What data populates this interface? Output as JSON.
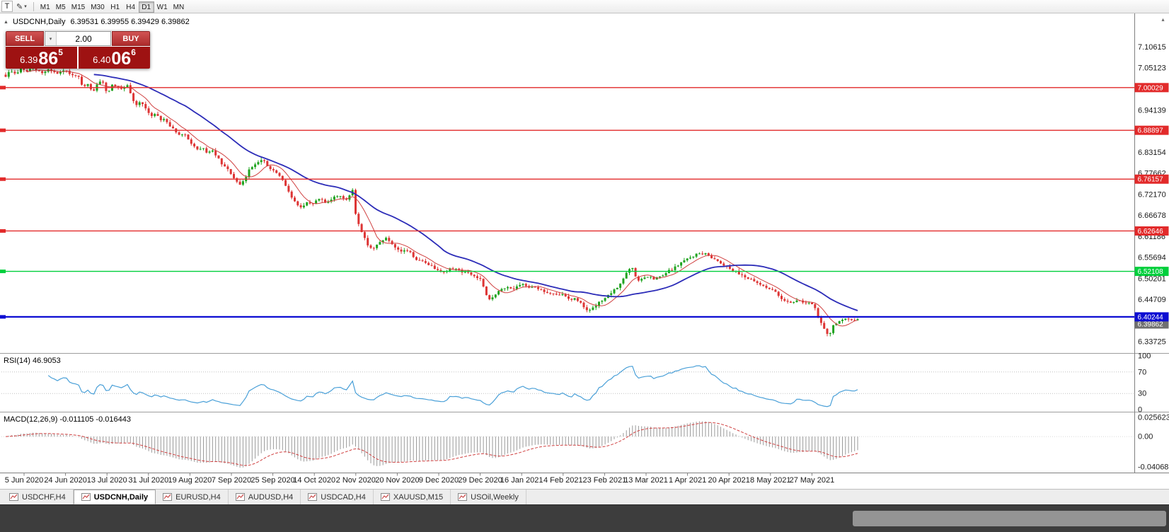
{
  "icons": {
    "collapse": "▲",
    "caret_down": "▾",
    "pencil": "✎",
    "scroll_up": "▴"
  },
  "toolbar": {
    "tool_t": "T",
    "timeframes": [
      "M1",
      "M5",
      "M15",
      "M30",
      "H1",
      "H4",
      "D1",
      "W1",
      "MN"
    ],
    "active_timeframe": "D1"
  },
  "chart": {
    "symbol_period": "USDCNH,Daily",
    "ohlc": "6.39531 6.39955 6.39429 6.39862"
  },
  "trade_panel": {
    "sell_label": "SELL",
    "buy_label": "BUY",
    "volume": "2.00",
    "sell_price": {
      "prefix": "6.39",
      "big": "86",
      "sup": "5"
    },
    "buy_price": {
      "prefix": "6.40",
      "big": "06",
      "sup": "6"
    }
  },
  "chart_data": {
    "type": "candlestick",
    "symbol": "USDCNH",
    "period": "Daily",
    "title": "USDCNH,Daily",
    "ohlc": {
      "open": 6.39531,
      "high": 6.39955,
      "low": 6.39429,
      "close": 6.39862
    },
    "ylim": [
      6.31,
      7.19
    ],
    "y_ticks": [
      "7.10615",
      "7.05123",
      "6.99631",
      "6.94139",
      "6.88646",
      "6.83154",
      "6.77662",
      "6.72170",
      "6.66678",
      "6.61186",
      "6.55694",
      "6.50201",
      "6.44709",
      "6.39217",
      "6.33725"
    ],
    "x_labels": [
      "5 Jun 2020",
      "24 Jun 2020",
      "13 Jul 2020",
      "31 Jul 2020",
      "19 Aug 2020",
      "7 Sep 2020",
      "25 Sep 2020",
      "14 Oct 2020",
      "2 Nov 2020",
      "20 Nov 2020",
      "9 Dec 2020",
      "29 Dec 2020",
      "16 Jan 2021",
      "4 Feb 2021",
      "23 Feb 2021",
      "13 Mar 2021",
      "1 Apr 2021",
      "20 Apr 2021",
      "8 May 2021",
      "27 May 2021"
    ],
    "price_path": [
      [
        8,
        7.03
      ],
      [
        15,
        7.045
      ],
      [
        22,
        7.035
      ],
      [
        30,
        7.05
      ],
      [
        38,
        7.042
      ],
      [
        45,
        7.052
      ],
      [
        52,
        7.045
      ],
      [
        60,
        7.038
      ],
      [
        68,
        7.048
      ],
      [
        75,
        7.042
      ],
      [
        82,
        7.035
      ],
      [
        90,
        7.045
      ],
      [
        97,
        7.04
      ],
      [
        104,
        7.028
      ],
      [
        110,
        7.032
      ],
      [
        117,
        7.0
      ],
      [
        124,
        7.008
      ],
      [
        131,
        6.988
      ],
      [
        138,
        7.01
      ],
      [
        145,
        7.018
      ],
      [
        152,
        6.982
      ],
      [
        159,
        7.012
      ],
      [
        166,
        7.0
      ],
      [
        173,
        6.995
      ],
      [
        180,
        7.005
      ],
      [
        187,
        6.97
      ],
      [
        193,
        6.955
      ],
      [
        200,
        6.965
      ],
      [
        207,
        6.94
      ],
      [
        213,
        6.925
      ],
      [
        220,
        6.935
      ],
      [
        227,
        6.915
      ],
      [
        233,
        6.92
      ],
      [
        240,
        6.9
      ],
      [
        247,
        6.89
      ],
      [
        253,
        6.875
      ],
      [
        260,
        6.88
      ],
      [
        267,
        6.862
      ],
      [
        273,
        6.85
      ],
      [
        280,
        6.835
      ],
      [
        287,
        6.842
      ],
      [
        293,
        6.83
      ],
      [
        300,
        6.835
      ],
      [
        307,
        6.82
      ],
      [
        313,
        6.8
      ],
      [
        320,
        6.79
      ],
      [
        327,
        6.775
      ],
      [
        333,
        6.755
      ],
      [
        340,
        6.745
      ],
      [
        347,
        6.765
      ],
      [
        353,
        6.79
      ],
      [
        360,
        6.8
      ],
      [
        367,
        6.812
      ],
      [
        373,
        6.808
      ],
      [
        380,
        6.79
      ],
      [
        387,
        6.782
      ],
      [
        393,
        6.775
      ],
      [
        400,
        6.755
      ],
      [
        407,
        6.735
      ],
      [
        413,
        6.71
      ],
      [
        420,
        6.695
      ],
      [
        427,
        6.685
      ],
      [
        433,
        6.7
      ],
      [
        440,
        6.695
      ],
      [
        447,
        6.705
      ],
      [
        453,
        6.712
      ],
      [
        460,
        6.7
      ],
      [
        467,
        6.708
      ],
      [
        473,
        6.715
      ],
      [
        480,
        6.72
      ],
      [
        487,
        6.71
      ],
      [
        493,
        6.705
      ],
      [
        497,
        6.757
      ],
      [
        501,
        6.68
      ],
      [
        507,
        6.645
      ],
      [
        513,
        6.615
      ],
      [
        520,
        6.59
      ],
      [
        527,
        6.578
      ],
      [
        533,
        6.59
      ],
      [
        540,
        6.603
      ],
      [
        547,
        6.608
      ],
      [
        553,
        6.592
      ],
      [
        560,
        6.578
      ],
      [
        567,
        6.572
      ],
      [
        573,
        6.578
      ],
      [
        580,
        6.57
      ],
      [
        587,
        6.553
      ],
      [
        593,
        6.548
      ],
      [
        600,
        6.545
      ],
      [
        607,
        6.538
      ],
      [
        613,
        6.53
      ],
      [
        620,
        6.526
      ],
      [
        627,
        6.518
      ],
      [
        633,
        6.525
      ],
      [
        640,
        6.53
      ],
      [
        647,
        6.527
      ],
      [
        653,
        6.52
      ],
      [
        660,
        6.518
      ],
      [
        667,
        6.512
      ],
      [
        673,
        6.505
      ],
      [
        680,
        6.5
      ],
      [
        685,
        6.468
      ],
      [
        690,
        6.445
      ],
      [
        695,
        6.452
      ],
      [
        700,
        6.462
      ],
      [
        707,
        6.472
      ],
      [
        713,
        6.477
      ],
      [
        720,
        6.48
      ],
      [
        727,
        6.475
      ],
      [
        733,
        6.483
      ],
      [
        740,
        6.487
      ],
      [
        747,
        6.48
      ],
      [
        753,
        6.483
      ],
      [
        760,
        6.477
      ],
      [
        767,
        6.47
      ],
      [
        773,
        6.465
      ],
      [
        780,
        6.462
      ],
      [
        787,
        6.458
      ],
      [
        793,
        6.462
      ],
      [
        800,
        6.455
      ],
      [
        807,
        6.448
      ],
      [
        813,
        6.45
      ],
      [
        820,
        6.44
      ],
      [
        827,
        6.425
      ],
      [
        833,
        6.418
      ],
      [
        840,
        6.428
      ],
      [
        847,
        6.44
      ],
      [
        853,
        6.45
      ],
      [
        860,
        6.458
      ],
      [
        867,
        6.47
      ],
      [
        873,
        6.48
      ],
      [
        880,
        6.5
      ],
      [
        887,
        6.522
      ],
      [
        893,
        6.532
      ],
      [
        897,
        6.51
      ],
      [
        903,
        6.497
      ],
      [
        910,
        6.503
      ],
      [
        917,
        6.508
      ],
      [
        923,
        6.5
      ],
      [
        930,
        6.505
      ],
      [
        937,
        6.51
      ],
      [
        943,
        6.52
      ],
      [
        950,
        6.527
      ],
      [
        957,
        6.535
      ],
      [
        963,
        6.545
      ],
      [
        970,
        6.552
      ],
      [
        977,
        6.558
      ],
      [
        983,
        6.565
      ],
      [
        990,
        6.568
      ],
      [
        997,
        6.566
      ],
      [
        1003,
        6.56
      ],
      [
        1010,
        6.553
      ],
      [
        1017,
        6.545
      ],
      [
        1023,
        6.538
      ],
      [
        1030,
        6.53
      ],
      [
        1037,
        6.523
      ],
      [
        1043,
        6.517
      ],
      [
        1050,
        6.51
      ],
      [
        1057,
        6.503
      ],
      [
        1063,
        6.497
      ],
      [
        1070,
        6.49
      ],
      [
        1077,
        6.485
      ],
      [
        1083,
        6.48
      ],
      [
        1090,
        6.473
      ],
      [
        1097,
        6.465
      ],
      [
        1103,
        6.452
      ],
      [
        1110,
        6.445
      ],
      [
        1117,
        6.44
      ],
      [
        1123,
        6.443
      ],
      [
        1130,
        6.445
      ],
      [
        1137,
        6.44
      ],
      [
        1143,
        6.438
      ],
      [
        1150,
        6.432
      ],
      [
        1155,
        6.408
      ],
      [
        1160,
        6.388
      ],
      [
        1165,
        6.368
      ],
      [
        1170,
        6.358
      ],
      [
        1174,
        6.362
      ],
      [
        1177,
        6.378
      ],
      [
        1183,
        6.388
      ],
      [
        1190,
        6.393
      ],
      [
        1197,
        6.397
      ],
      [
        1203,
        6.392
      ],
      [
        1210,
        6.396
      ],
      [
        1216,
        6.399
      ]
    ],
    "horizontal_lines": [
      {
        "price": 7.00029,
        "label": "7.00029",
        "color": "#e22a2a",
        "width": 1.4
      },
      {
        "price": 6.88897,
        "label": "6.88897",
        "color": "#e22a2a",
        "width": 1.4
      },
      {
        "price": 6.76157,
        "label": "6.76157",
        "color": "#e22a2a",
        "width": 1.4
      },
      {
        "price": 6.62646,
        "label": "6.62646",
        "color": "#e22a2a",
        "width": 1.4
      },
      {
        "price": 6.52108,
        "label": "6.52108",
        "color": "#00cf3c",
        "width": 1.4
      },
      {
        "price": 6.40244,
        "label": "6.40244",
        "color": "#0d0dd2",
        "width": 2.2
      }
    ],
    "current_price_tag": {
      "price": 6.39862,
      "label": "6.39862",
      "color": "#707070"
    },
    "candle_up_color": "#1fa31f",
    "candle_down_color": "#dd3434",
    "ma_fast_color": "#d04040",
    "ma_slow_color": "#2c2cb8",
    "indicators": {
      "rsi": {
        "label": "RSI(14) 46.9053",
        "value": 46.9053,
        "period": 14,
        "levels": [
          "100",
          "70",
          "30",
          "0"
        ],
        "line_color": "#4aa0d8"
      },
      "macd": {
        "label": "MACD(12,26,9) -0.011105 -0.016443",
        "macd_value": -0.011105,
        "signal_value": -0.016443,
        "y_ticks": [
          "0.025623",
          "0.00",
          "-0.040687"
        ],
        "hist_color": "#9a9a9a",
        "signal_color": "#d04040"
      }
    }
  },
  "tabs": {
    "items": [
      "USDCHF,H4",
      "USDCNH,Daily",
      "EURUSD,H4",
      "AUDUSD,H4",
      "USDCAD,H4",
      "XAUUSD,M15",
      "USOil,Weekly"
    ],
    "active_index": 1
  }
}
